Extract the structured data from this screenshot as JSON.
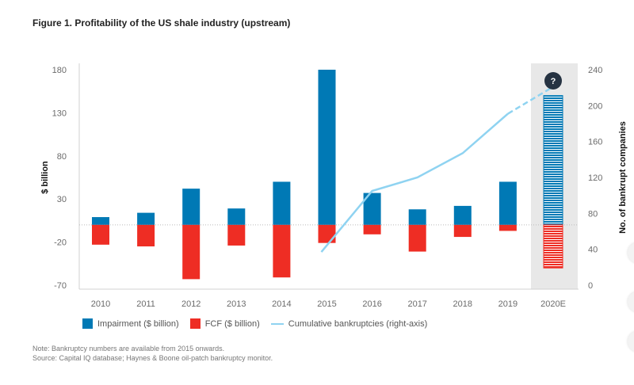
{
  "figure": {
    "title": "Figure 1. Profitability of the US shale industry (upstream)",
    "note": "Note: Bankruptcy numbers are available from 2015 onwards.",
    "source": "Source: Capital IQ database; Haynes & Boone oil-patch bankruptcy monitor.",
    "question_marker": "?"
  },
  "colors": {
    "impairment": "#0079b5",
    "fcf": "#ee2d24",
    "bankruptcies": "#8fd3f1",
    "estimate_bg": "#e8e8e8"
  },
  "chart_data": {
    "type": "bar",
    "title": "Figure 1. Profitability of the US shale industry (upstream)",
    "categories": [
      "2010",
      "2011",
      "2012",
      "2013",
      "2014",
      "2015",
      "2016",
      "2017",
      "2018",
      "2019",
      "2020E"
    ],
    "series": [
      {
        "name": "Impairment ($ billion)",
        "type": "bar",
        "axis": "left",
        "values": [
          9,
          14,
          42,
          19,
          50,
          180,
          37,
          18,
          22,
          50,
          150
        ]
      },
      {
        "name": "FCF ($ billion)",
        "type": "bar",
        "axis": "left",
        "values": [
          -23,
          -25,
          -63,
          -24,
          -61,
          -21,
          -11,
          -31,
          -14,
          -7,
          -50
        ]
      },
      {
        "name": "Cumulative bankruptcies (right-axis)",
        "type": "line",
        "axis": "right",
        "values": [
          null,
          null,
          null,
          null,
          null,
          37,
          105,
          120,
          147,
          191,
          221
        ],
        "dashed_from": "2019"
      }
    ],
    "ylabel": "$ billion",
    "ylim": [
      -70,
      180
    ],
    "yticks": [
      -70,
      -20,
      30,
      80,
      130,
      180
    ],
    "y2label": "No. of bankrupt companies",
    "y2lim": [
      0,
      240
    ],
    "y2ticks": [
      0,
      40,
      80,
      120,
      160,
      200,
      240
    ],
    "highlighted_category": "2020E",
    "estimate_category_hatched": true,
    "grid": false,
    "zero_line": "dotted",
    "legend_position": "bottom"
  }
}
